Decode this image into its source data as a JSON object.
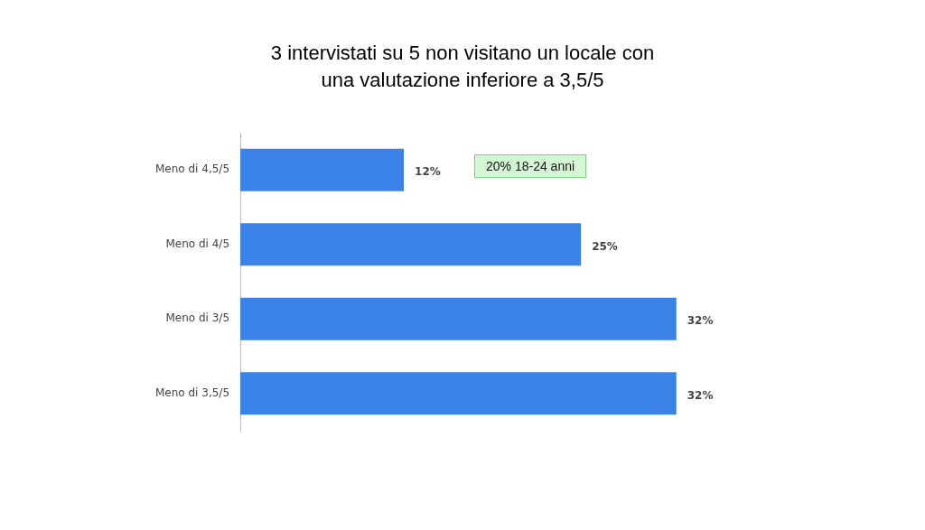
{
  "chart_data": {
    "type": "bar",
    "orientation": "horizontal",
    "title": "3 intervistati su 5 non visitano un locale con una valutazione inferiore a 3,5/5",
    "categories": [
      "Meno di 4,5/5",
      "Meno di 4/5",
      "Meno di 3/5",
      "Meno di 3,5/5"
    ],
    "values": [
      12,
      25,
      32,
      32
    ],
    "color": "#3b82e8",
    "value_labels": [
      "12%",
      "25%",
      "32%",
      "32%"
    ],
    "annotations": [
      "20% 18-24 anni"
    ],
    "legend": false
  }
}
